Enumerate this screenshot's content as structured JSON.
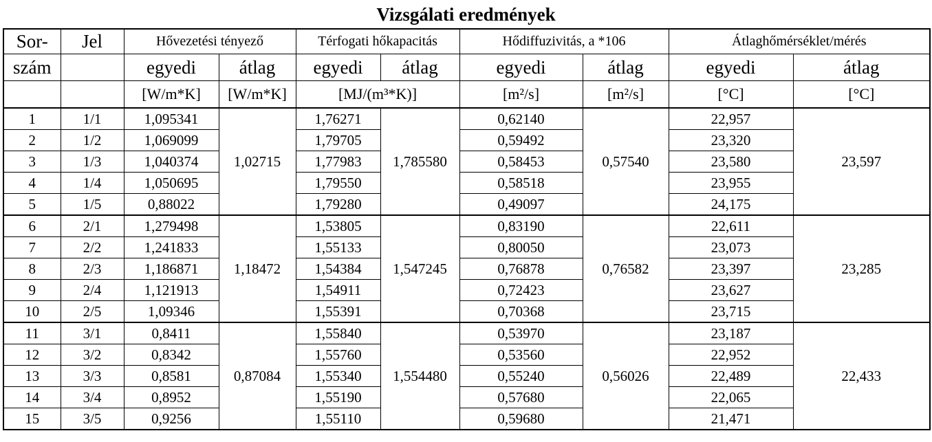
{
  "title": "Vizsgálati eredmények",
  "header": {
    "row1": [
      "Sor-",
      "Jel",
      "Hővezetési tényező",
      "Térfogati hőkapacitás",
      "Hődiffuzivitás, a *106",
      "Átlaghőmérséklet/mérés"
    ],
    "row2": [
      "szám",
      "egyedi",
      "átlag",
      "egyedi",
      "átlag",
      "egyedi",
      "átlag",
      "egyedi",
      "átlag"
    ],
    "row3": [
      "[W/m*K]",
      "[W/m*K]",
      "[MJ/(m³*K)]",
      "[m²/s]",
      "[m²/s]",
      "[°C]",
      "[°C]"
    ]
  },
  "groups": [
    {
      "rows": [
        [
          "1",
          "1/1",
          "1,095341",
          "1,76271",
          "0,62140",
          "22,957"
        ],
        [
          "2",
          "1/2",
          "1,069099",
          "1,79705",
          "0,59492",
          "23,320"
        ],
        [
          "3",
          "1/3",
          "1,040374",
          "1,77983",
          "0,58453",
          "23,580"
        ],
        [
          "4",
          "1/4",
          "1,050695",
          "1,79550",
          "0,58518",
          "23,955"
        ],
        [
          "5",
          "1/5",
          "0,88022",
          "1,79280",
          "0,49097",
          "24,175"
        ]
      ],
      "avg": [
        "1,02715",
        "1,785580",
        "0,57540",
        "23,597"
      ]
    },
    {
      "rows": [
        [
          "6",
          "2/1",
          "1,279498",
          "1,53805",
          "0,83190",
          "22,611"
        ],
        [
          "7",
          "2/2",
          "1,241833",
          "1,55133",
          "0,80050",
          "23,073"
        ],
        [
          "8",
          "2/3",
          "1,186871",
          "1,54384",
          "0,76878",
          "23,397"
        ],
        [
          "9",
          "2/4",
          "1,121913",
          "1,54911",
          "0,72423",
          "23,627"
        ],
        [
          "10",
          "2/5",
          "1,09346",
          "1,55391",
          "0,70368",
          "23,715"
        ]
      ],
      "avg": [
        "1,18472",
        "1,547245",
        "0,76582",
        "23,285"
      ]
    },
    {
      "rows": [
        [
          "11",
          "3/1",
          "0,8411",
          "1,55840",
          "0,53970",
          "23,187"
        ],
        [
          "12",
          "3/2",
          "0,8342",
          "1,55760",
          "0,53560",
          "22,952"
        ],
        [
          "13",
          "3/3",
          "0,8581",
          "1,55340",
          "0,55240",
          "22,489"
        ],
        [
          "14",
          "3/4",
          "0,8952",
          "1,55190",
          "0,57680",
          "22,065"
        ],
        [
          "15",
          "3/5",
          "0,9256",
          "1,55110",
          "0,59680",
          "21,471"
        ]
      ],
      "avg": [
        "0,87084",
        "1,554480",
        "0,56026",
        "22,433"
      ]
    }
  ]
}
